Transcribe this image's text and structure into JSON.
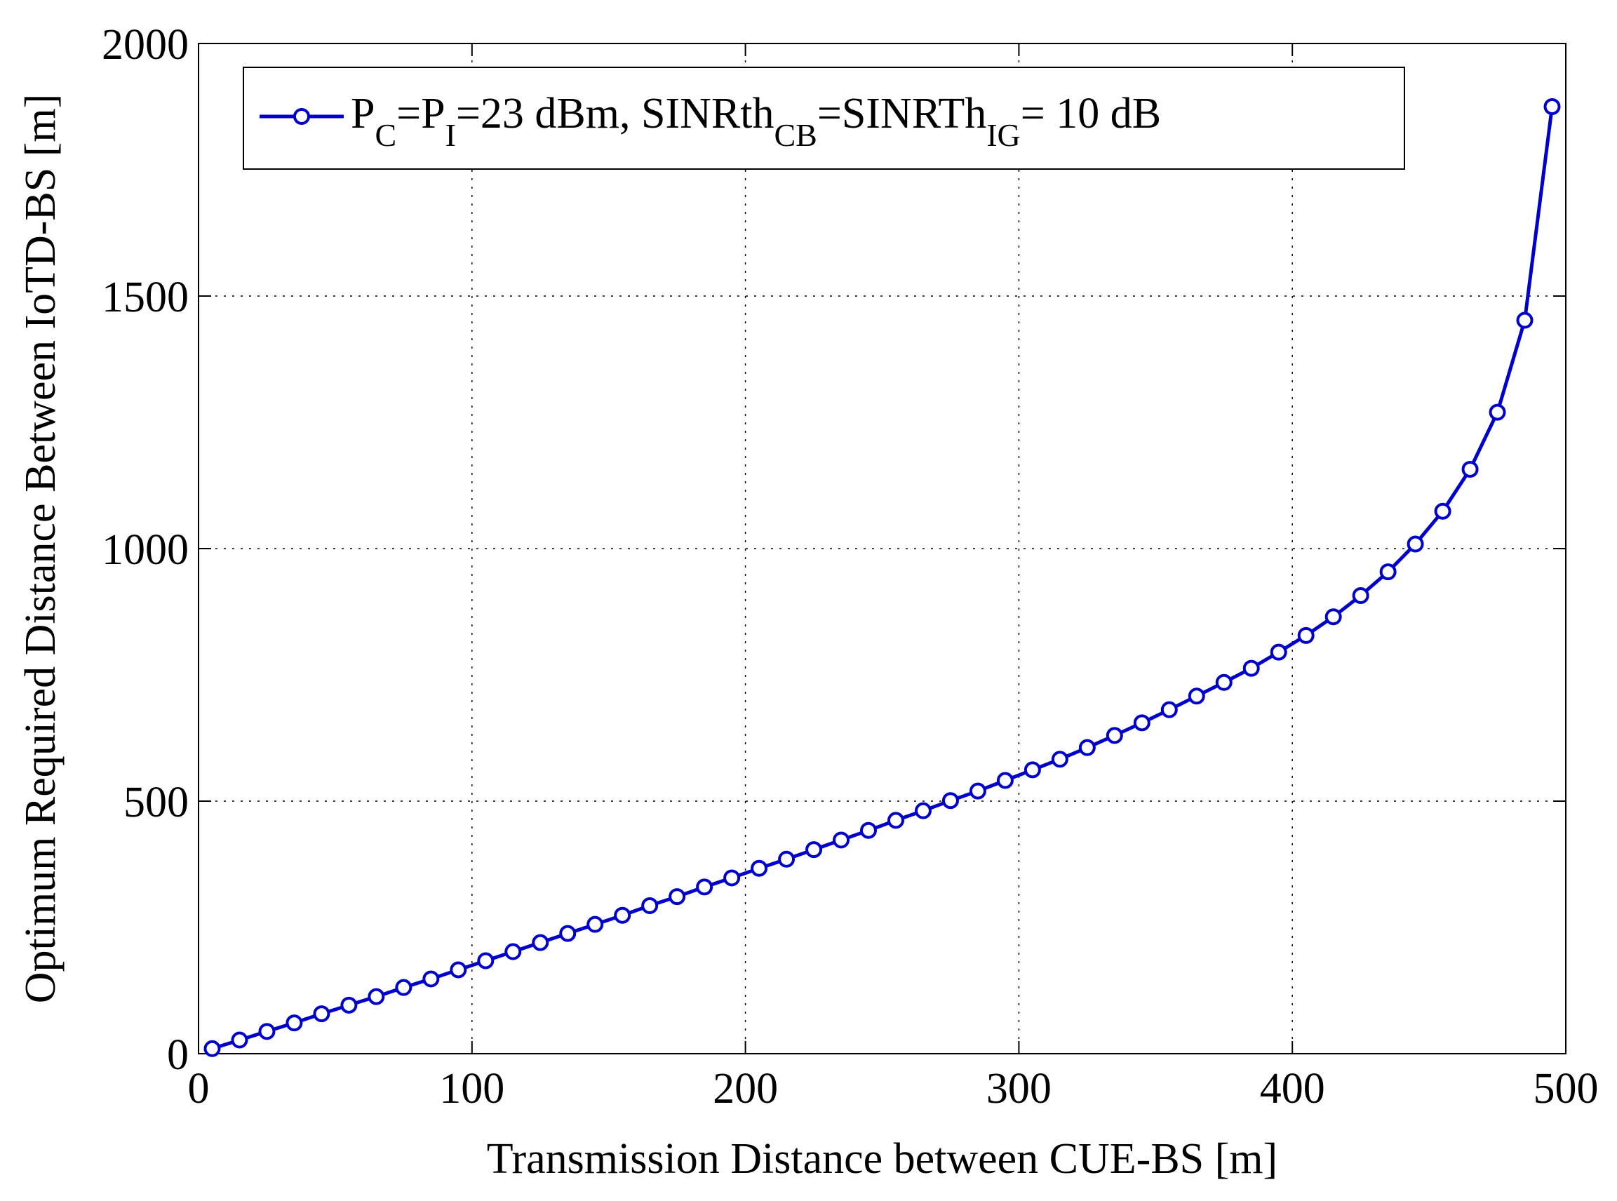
{
  "chart_data": {
    "type": "line",
    "title": "",
    "xlabel": "Transmission Distance between CUE-BS [m]",
    "ylabel": "Optimum Required Distance Between IoTD-BS [m]",
    "xlim": [
      0,
      500
    ],
    "ylim": [
      0,
      2000
    ],
    "xticks": [
      0,
      100,
      200,
      300,
      400,
      500
    ],
    "yticks": [
      0,
      500,
      1000,
      1500,
      2000
    ],
    "xtick_labels": [
      "0",
      "100",
      "200",
      "300",
      "400",
      "500"
    ],
    "ytick_labels": [
      "0",
      "500",
      "1000",
      "1500",
      "2000"
    ],
    "grid": true,
    "legend": {
      "position": "top",
      "entries": [
        {
          "series": 0,
          "parts": [
            {
              "text": "P",
              "sub": false
            },
            {
              "text": "C",
              "sub": true
            },
            {
              "text": "=P",
              "sub": false
            },
            {
              "text": "I",
              "sub": true
            },
            {
              "text": "=23 dBm, SINRth",
              "sub": false
            },
            {
              "text": "CB",
              "sub": true
            },
            {
              "text": "=SINRTh",
              "sub": false
            },
            {
              "text": "IG",
              "sub": true
            },
            {
              "text": "= 10 dB",
              "sub": false
            }
          ]
        }
      ]
    },
    "series": [
      {
        "name": "PC=PI=23 dBm, SINRthCB=SINRThIG= 10 dB",
        "color": "#0000CC",
        "marker": "circle",
        "x": [
          5,
          15,
          25,
          35,
          45,
          55,
          65,
          75,
          85,
          95,
          105,
          115,
          125,
          135,
          145,
          155,
          165,
          175,
          185,
          195,
          205,
          215,
          225,
          235,
          245,
          255,
          265,
          275,
          285,
          295,
          305,
          315,
          325,
          335,
          345,
          355,
          365,
          375,
          385,
          395,
          405,
          415,
          425,
          435,
          445,
          455,
          465,
          475,
          485,
          495
        ],
        "y": [
          10,
          27,
          44,
          61,
          79,
          96,
          113,
          131,
          148,
          166,
          184,
          202,
          220,
          238,
          256,
          274,
          293,
          311,
          330,
          348,
          367,
          385,
          404,
          423,
          442,
          462,
          481,
          501,
          520,
          541,
          562,
          583,
          606,
          630,
          655,
          681,
          708,
          735,
          763,
          795,
          828,
          865,
          907,
          954,
          1009,
          1074,
          1157,
          1270,
          1452,
          1875
        ]
      }
    ]
  }
}
